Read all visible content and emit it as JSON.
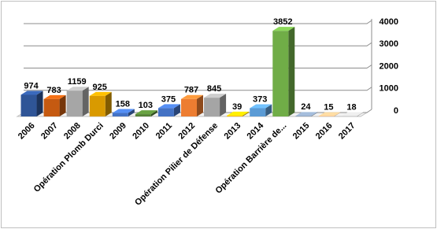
{
  "chart_data": {
    "type": "bar3d",
    "categories": [
      "2006",
      "2007",
      "2008",
      "Opération Plomb Durci",
      "2009",
      "2010",
      "2011",
      "2012",
      "Opération Pilier de Défense",
      "2013",
      "2014",
      "Opération Barrière de...",
      "2015",
      "2016",
      "2017"
    ],
    "values": [
      974,
      783,
      1159,
      925,
      158,
      103,
      375,
      787,
      845,
      39,
      373,
      3852,
      24,
      15,
      18
    ],
    "colors": [
      "#2f5597",
      "#c55a11",
      "#a6a6a6",
      "#d99a00",
      "#4472c4",
      "#548235",
      "#4472c4",
      "#ed7d31",
      "#a5a5a5",
      "#ffc000",
      "#5b9bd5",
      "#70ad47",
      "#8497b0",
      "#f4b183",
      "#bfbfbf"
    ],
    "ylim": [
      0,
      4000
    ],
    "yticks": [
      0,
      1000,
      2000,
      3000,
      4000
    ],
    "grid": true,
    "y_axis_side": "right"
  }
}
